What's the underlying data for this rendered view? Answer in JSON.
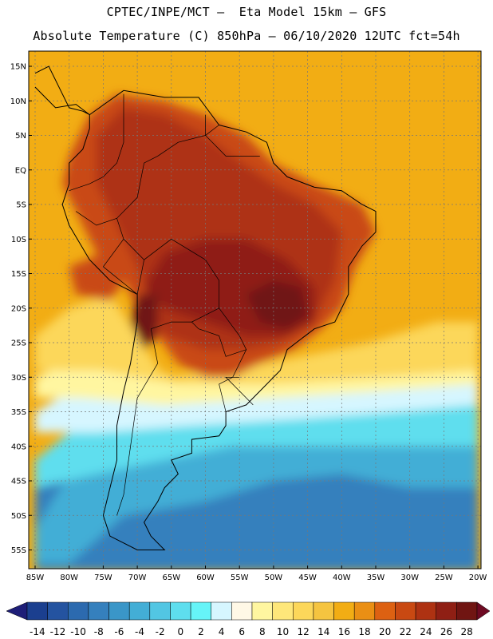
{
  "title_line1": "CPTEC/INPE/MCT —  Eta Model 15km — GFS",
  "title_line2": "Absolute Temperature (C) 850hPa — 06/10/2020 12UTC fct=54h",
  "lat_labels": [
    "15N",
    "10N",
    "5N",
    "EQ",
    "5S",
    "10S",
    "15S",
    "20S",
    "25S",
    "30S",
    "35S",
    "40S",
    "45S",
    "50S",
    "55S"
  ],
  "lat_values": [
    15,
    10,
    5,
    0,
    -5,
    -10,
    -15,
    -20,
    -25,
    -30,
    -35,
    -40,
    -45,
    -50,
    -55
  ],
  "lon_labels": [
    "85W",
    "80W",
    "75W",
    "70W",
    "65W",
    "60W",
    "55W",
    "50W",
    "45W",
    "40W",
    "35W",
    "30W",
    "25W",
    "20W"
  ],
  "lon_values": [
    -85,
    -80,
    -75,
    -70,
    -65,
    -60,
    -55,
    -50,
    -45,
    -40,
    -35,
    -30,
    -25,
    -20
  ],
  "colorbar": {
    "labels": [
      "-14",
      "-12",
      "-10",
      "-8",
      "-6",
      "-4",
      "-2",
      "0",
      "2",
      "4",
      "6",
      "8",
      "10",
      "12",
      "14",
      "16",
      "18",
      "20",
      "22",
      "24",
      "26",
      "28"
    ],
    "colors": [
      "#1b3f8f",
      "#2453a0",
      "#2c6aaf",
      "#3580bd",
      "#3a96c8",
      "#43aed6",
      "#52c6e3",
      "#5edeee",
      "#66f4f8",
      "#d6f6ff",
      "#fff8e6",
      "#fff6a0",
      "#fee77a",
      "#fcd75a",
      "#f5c440",
      "#f2ad14",
      "#ea8f14",
      "#dd6112",
      "#c94912",
      "#ae3212",
      "#8f1f14",
      "#701512"
    ],
    "endcap_low": "#1e1e78",
    "endcap_high": "#6e0a22"
  },
  "map_colors": {
    "ocean_warm": "#f2ad14",
    "land_hot": "#c94912",
    "land_hotter": "#ae3212",
    "land_hottest": "#8f1f14",
    "peak": "#701512",
    "subtrop": "#fcd75a",
    "mild": "#fff6a0",
    "cool": "#d6f6ff",
    "cold": "#5edeee",
    "colder": "#43aed6",
    "coldest": "#3580bd"
  }
}
